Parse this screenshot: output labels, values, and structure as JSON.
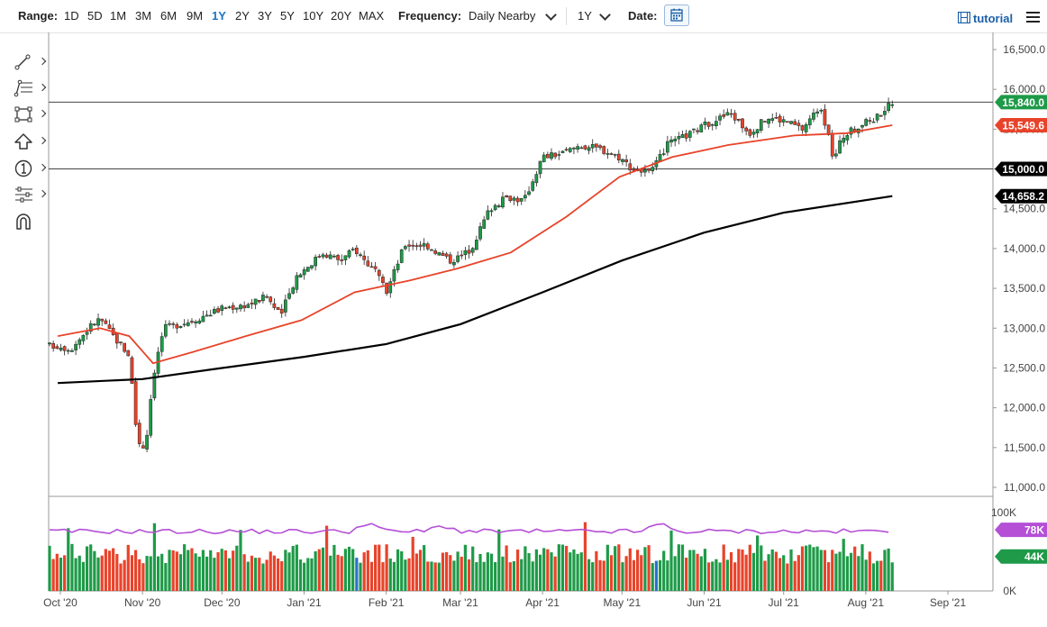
{
  "toolbar": {
    "range_label": "Range:",
    "ranges": [
      "1D",
      "5D",
      "1M",
      "3M",
      "6M",
      "9M",
      "1Y",
      "2Y",
      "3Y",
      "5Y",
      "10Y",
      "20Y",
      "MAX"
    ],
    "active_range": "1Y",
    "frequency_label": "Frequency:",
    "frequency_value": "Daily Nearby",
    "period_value": "1Y",
    "date_label": "Date:",
    "tutorial_label": "tutorial"
  },
  "side_tools": [
    "line-tool-icon",
    "fib-tool-icon",
    "rectangle-tool-icon",
    "arrow-up-tool-icon",
    "number-marker-icon",
    "settings-sliders-icon",
    "magnet-icon"
  ],
  "chart_data": {
    "type": "candlestick",
    "x_ticks": [
      "Oct '20",
      "Nov '20",
      "Dec '20",
      "Jan '21",
      "Feb '21",
      "Mar '21",
      "Apr '21",
      "May '21",
      "Jun '21",
      "Jul '21",
      "Aug '21",
      "Sep '21"
    ],
    "y_ticks": [
      "16,500.0",
      "16,000.0",
      "15,500.0",
      "15,000.0",
      "14,500.0",
      "14,000.0",
      "13,500.0",
      "13,000.0",
      "12,500.0",
      "12,000.0",
      "11,500.0",
      "11,000.0"
    ],
    "ylim": [
      10900,
      16620
    ],
    "grid": false,
    "price_path": [
      [
        "2020-09-30",
        12780
      ],
      [
        "2020-10-05",
        12740
      ],
      [
        "2020-10-13",
        13050
      ],
      [
        "2020-10-16",
        13120
      ],
      [
        "2020-10-21",
        12900
      ],
      [
        "2020-10-27",
        12660
      ],
      [
        "2020-10-30",
        11600
      ],
      [
        "2020-11-02",
        11480
      ],
      [
        "2020-11-05",
        12400
      ],
      [
        "2020-11-09",
        13000
      ],
      [
        "2020-11-20",
        13100
      ],
      [
        "2020-12-01",
        13250
      ],
      [
        "2020-12-11",
        13300
      ],
      [
        "2020-12-18",
        13400
      ],
      [
        "2020-12-23",
        13150
      ],
      [
        "2020-12-29",
        13650
      ],
      [
        "2021-01-08",
        13950
      ],
      [
        "2021-01-15",
        13850
      ],
      [
        "2021-01-20",
        14000
      ],
      [
        "2021-01-28",
        13700
      ],
      [
        "2021-02-01",
        13450
      ],
      [
        "2021-02-08",
        14050
      ],
      [
        "2021-02-16",
        14050
      ],
      [
        "2021-02-25",
        13850
      ],
      [
        "2021-03-01",
        13900
      ],
      [
        "2021-03-05",
        14000
      ],
      [
        "2021-03-12",
        14500
      ],
      [
        "2021-03-19",
        14650
      ],
      [
        "2021-03-25",
        14600
      ],
      [
        "2021-04-01",
        15150
      ],
      [
        "2021-04-09",
        15200
      ],
      [
        "2021-04-15",
        15300
      ],
      [
        "2021-04-23",
        15250
      ],
      [
        "2021-04-30",
        15150
      ],
      [
        "2021-05-05",
        15000
      ],
      [
        "2021-05-12",
        14950
      ],
      [
        "2021-05-18",
        15300
      ],
      [
        "2021-05-27",
        15450
      ],
      [
        "2021-06-04",
        15600
      ],
      [
        "2021-06-11",
        15700
      ],
      [
        "2021-06-18",
        15450
      ],
      [
        "2021-06-25",
        15650
      ],
      [
        "2021-07-02",
        15600
      ],
      [
        "2021-07-08",
        15500
      ],
      [
        "2021-07-15",
        15800
      ],
      [
        "2021-07-20",
        15100
      ],
      [
        "2021-07-23",
        15400
      ],
      [
        "2021-07-30",
        15550
      ],
      [
        "2021-08-05",
        15650
      ],
      [
        "2021-08-11",
        15840
      ]
    ],
    "ma50_path": [
      [
        "2020-09-30",
        12900
      ],
      [
        "2020-10-16",
        13000
      ],
      [
        "2020-10-27",
        12900
      ],
      [
        "2020-11-05",
        12560
      ],
      [
        "2020-11-20",
        12700
      ],
      [
        "2020-12-10",
        12900
      ],
      [
        "2020-12-31",
        13100
      ],
      [
        "2021-01-20",
        13450
      ],
      [
        "2021-02-10",
        13600
      ],
      [
        "2021-02-28",
        13750
      ],
      [
        "2021-03-20",
        13950
      ],
      [
        "2021-04-10",
        14400
      ],
      [
        "2021-04-30",
        14900
      ],
      [
        "2021-05-20",
        15150
      ],
      [
        "2021-06-10",
        15300
      ],
      [
        "2021-07-05",
        15420
      ],
      [
        "2021-07-25",
        15450
      ],
      [
        "2021-08-11",
        15549.6
      ]
    ],
    "ma200_path": [
      [
        "2020-09-30",
        12310
      ],
      [
        "2020-11-01",
        12360
      ],
      [
        "2020-12-01",
        12500
      ],
      [
        "2021-01-01",
        12640
      ],
      [
        "2021-02-01",
        12800
      ],
      [
        "2021-03-01",
        13050
      ],
      [
        "2021-04-01",
        13450
      ],
      [
        "2021-05-01",
        13850
      ],
      [
        "2021-06-01",
        14200
      ],
      [
        "2021-07-01",
        14450
      ],
      [
        "2021-08-11",
        14658.2
      ]
    ],
    "horizontal_lines": [
      15840.0,
      15000.0
    ],
    "price_labels": [
      {
        "text": "15,840.0",
        "value": 15840.0,
        "color": "#1e9a48"
      },
      {
        "text": "15,549.6",
        "value": 15549.6,
        "color": "#e8432a"
      },
      {
        "text": "15,000.0",
        "value": 15000.0,
        "color": "#000000"
      },
      {
        "text": "14,658.2",
        "value": 14658.2,
        "color": "#000000"
      }
    ],
    "volume": {
      "y_ticks": [
        "100K",
        "0K"
      ],
      "ylim": [
        0,
        100000
      ],
      "labels": [
        {
          "text": "78K",
          "value": 78000,
          "color": "#b44fd6"
        },
        {
          "text": "44K",
          "value": 44000,
          "color": "#1e9a48"
        }
      ]
    },
    "colors": {
      "up": "#1e9a48",
      "down": "#e8432a",
      "ma50": "#e8432a",
      "ma200": "#000000",
      "volume_avg": "#b44fd6",
      "volume_special": "#2a6fd0"
    }
  }
}
